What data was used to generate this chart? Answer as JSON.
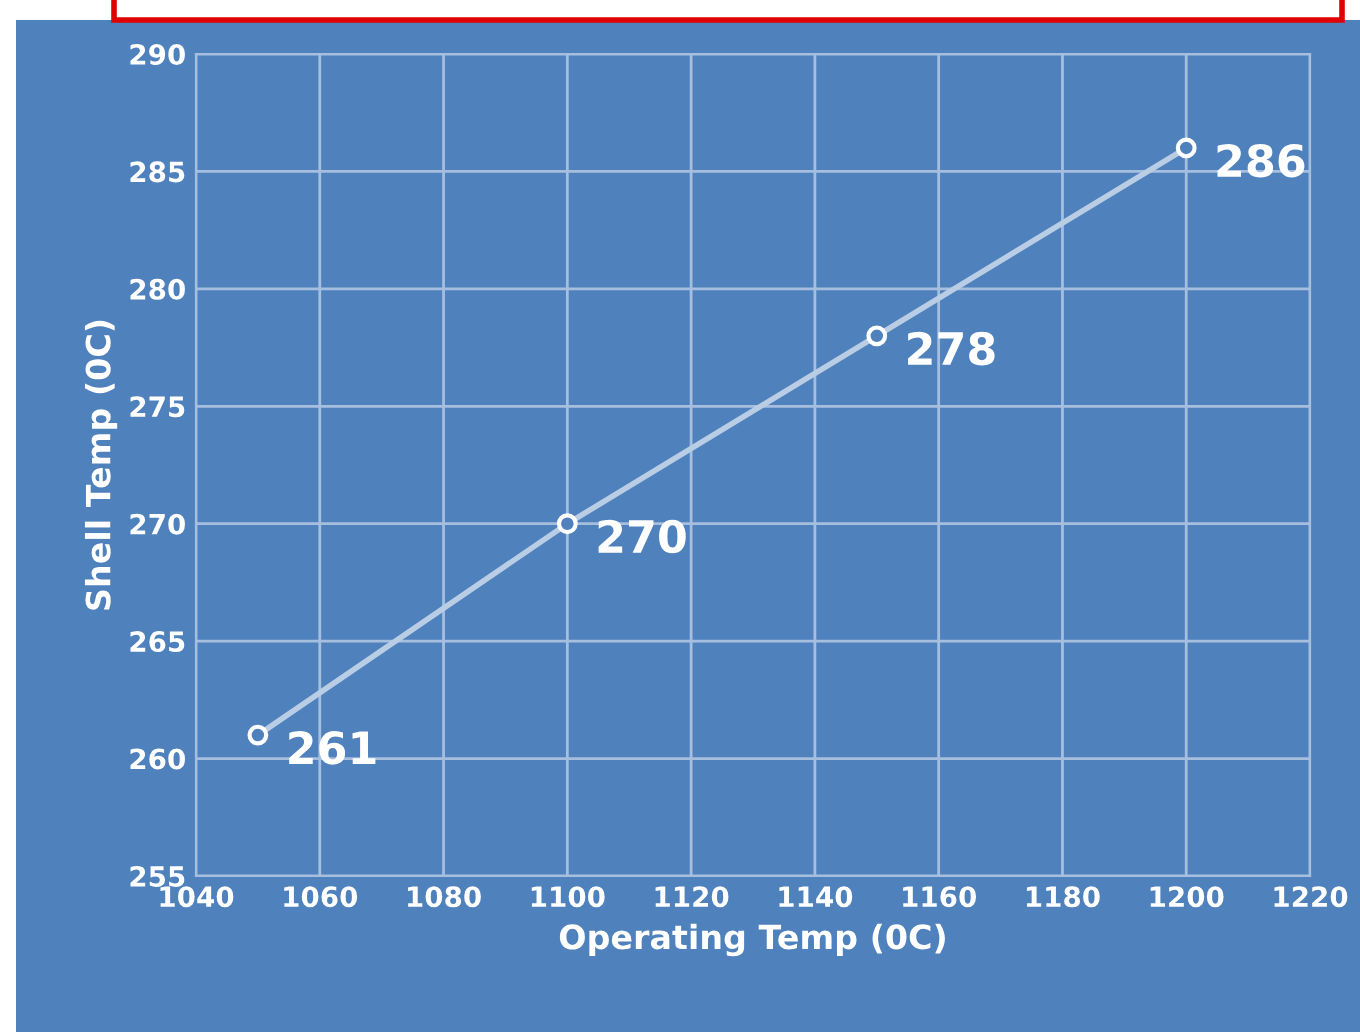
{
  "chart_data": {
    "type": "line",
    "xlabel": "Operating Temp (0C)",
    "ylabel": "Shell Temp (0C)",
    "x": [
      1050,
      1100,
      1150,
      1200
    ],
    "series": [
      {
        "color": "#b9cde5",
        "values": [
          261,
          270,
          278,
          286
        ]
      }
    ],
    "xlim": [
      1040,
      1220
    ],
    "xticks": [
      1040,
      1060,
      1080,
      1100,
      1120,
      1140,
      1160,
      1180,
      1200,
      1220
    ],
    "ylim": [
      255,
      290
    ],
    "yticks": [
      255,
      260,
      265,
      270,
      275,
      280,
      285,
      290
    ],
    "grid": true,
    "marker": "circle",
    "line_style": "solid",
    "data_labels": true
  }
}
